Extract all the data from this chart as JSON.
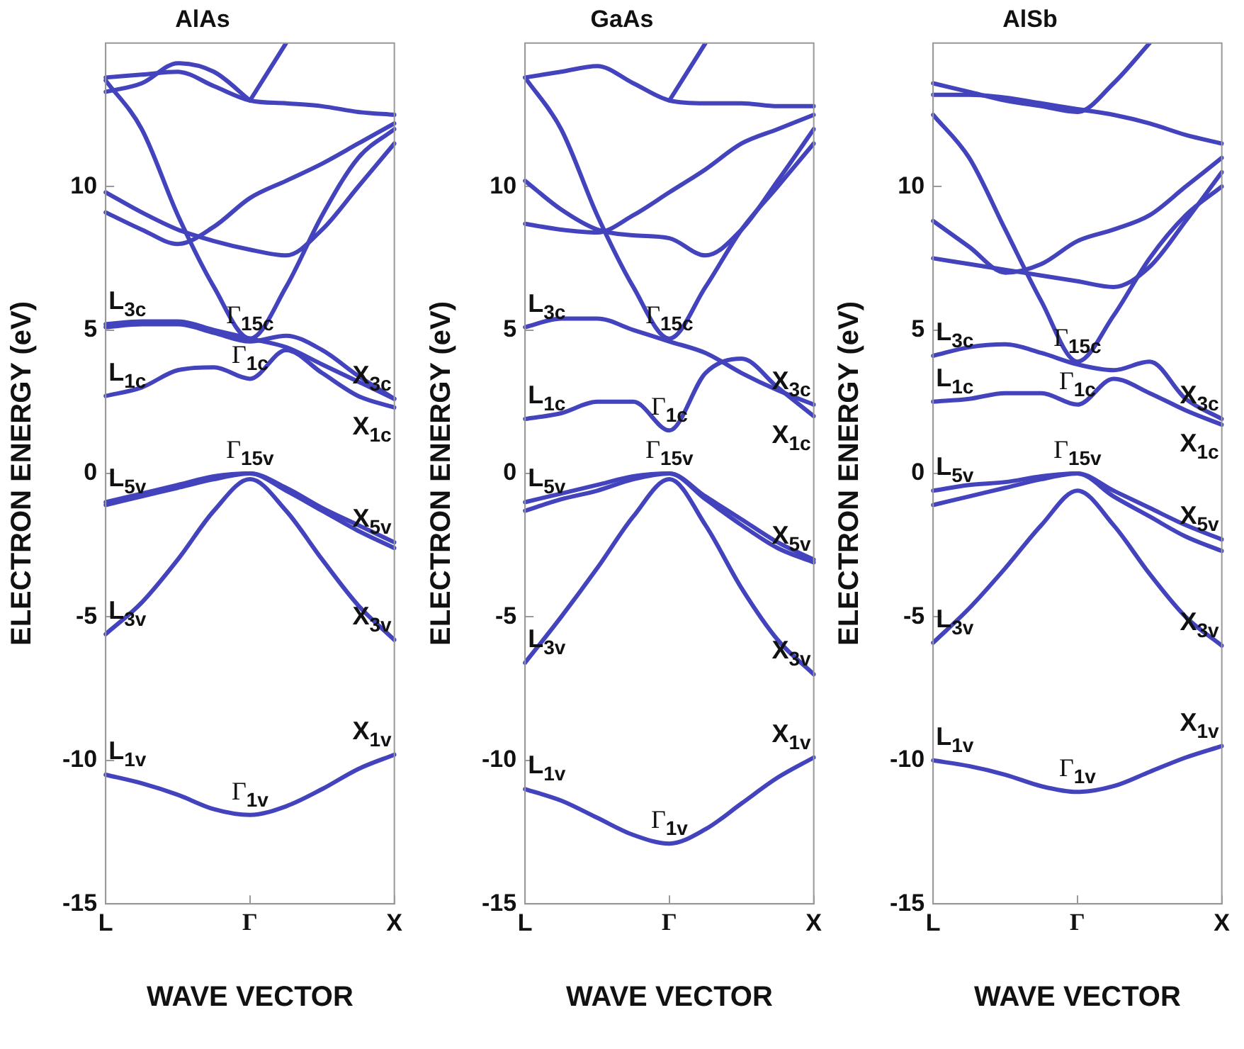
{
  "chart_data": [
    {
      "type": "line",
      "title": "AlAs",
      "xlabel": "WAVE VECTOR",
      "ylabel": "ELECTRON ENERGY (eV)",
      "categories": [
        "L",
        null,
        null,
        null,
        "Γ",
        null,
        null,
        null,
        "X"
      ],
      "ylim": [
        -15,
        15
      ],
      "yticks": [
        -15,
        -10,
        -5,
        0,
        5,
        10
      ],
      "legend": false,
      "grid": false,
      "marker": "none",
      "series": [
        {
          "color": "#4343bd",
          "values": [
            -10.5,
            -10.8,
            -11.2,
            -11.7,
            -11.9,
            -11.6,
            -11,
            -10.3,
            -9.8
          ]
        },
        {
          "color": "#4343bd",
          "values": [
            -5.6,
            -4.5,
            -3,
            -1.3,
            -0.2,
            -1.3,
            -3,
            -4.6,
            -5.8
          ]
        },
        {
          "color": "#4343bd",
          "values": [
            -1.1,
            -0.8,
            -0.5,
            -0.2,
            0,
            -0.6,
            -1.3,
            -2,
            -2.6
          ]
        },
        {
          "color": "#4343bd",
          "values": [
            -1,
            -0.7,
            -0.4,
            -0.1,
            0,
            -0.5,
            -1.2,
            -1.8,
            -2.4
          ]
        },
        {
          "color": "#4343bd",
          "values": [
            2.7,
            3,
            3.6,
            3.7,
            3.3,
            4.3,
            3.5,
            2.7,
            2.3
          ]
        },
        {
          "color": "#4343bd",
          "values": [
            5.2,
            5.3,
            5.3,
            5,
            4.7,
            4.4,
            3.8,
            3.2,
            2.6
          ]
        },
        {
          "color": "#4343bd",
          "values": [
            5.1,
            5.2,
            5.2,
            4.9,
            4.6,
            4.8,
            4.3,
            3.4,
            2.6
          ]
        },
        {
          "color": "#4343bd",
          "values": [
            13.7,
            12,
            9,
            6.5,
            4.7,
            6.5,
            9,
            11,
            12
          ]
        },
        {
          "color": "#4343bd",
          "values": [
            9.1,
            8.5,
            8,
            8.6,
            9.6,
            10.2,
            10.8,
            11.5,
            12.2
          ]
        },
        {
          "color": "#4343bd",
          "values": [
            9.8,
            9.1,
            8.5,
            8.1,
            7.8,
            7.6,
            8.5,
            10,
            11.5
          ]
        },
        {
          "color": "#4343bd",
          "values": [
            13.8,
            13.9,
            14,
            13.5,
            13,
            12.9,
            12.8,
            12.6,
            12.5
          ]
        },
        {
          "color": "#4343bd",
          "values": [
            13.3,
            13.6,
            14.3,
            14,
            13,
            null,
            null,
            null,
            null
          ]
        },
        {
          "color": "#4343bd",
          "values": [
            null,
            null,
            null,
            null,
            13,
            15,
            null,
            null,
            null
          ]
        }
      ],
      "annotations": [
        {
          "text": "L$_{3c}$",
          "x": "L",
          "y": 5.2
        },
        {
          "text": "L$_{1c}$",
          "x": "L",
          "y": 2.7
        },
        {
          "text": "L$_{5v}$",
          "x": "L",
          "y": -1
        },
        {
          "text": "L$_{3v}$",
          "x": "L",
          "y": -5.6
        },
        {
          "text": "L$_{1v}$",
          "x": "L",
          "y": -10.5
        },
        {
          "text": "Γ$_{15c}$",
          "x": "Γ",
          "y": 4.7
        },
        {
          "text": "Γ$_{1c}$",
          "x": "Γ",
          "y": 3.3
        },
        {
          "text": "Γ$_{15v}$",
          "x": "Γ",
          "y": 0
        },
        {
          "text": "Γ$_{1v}$",
          "x": "Γ",
          "y": -11.9
        },
        {
          "text": "X$_{3c}$",
          "x": "X",
          "y": 2.6
        },
        {
          "text": "X$_{1c}$",
          "x": "X",
          "y": 2.3
        },
        {
          "text": "X$_{5v}$",
          "x": "X",
          "y": -2.4
        },
        {
          "text": "X$_{3v}$",
          "x": "X",
          "y": -5.8
        },
        {
          "text": "X$_{1v}$",
          "x": "X",
          "y": -9.8
        }
      ]
    },
    {
      "type": "line",
      "title": "GaAs",
      "xlabel": "WAVE VECTOR",
      "ylabel": "ELECTRON ENERGY (eV)",
      "categories": [
        "L",
        null,
        null,
        null,
        "Γ",
        null,
        null,
        null,
        "X"
      ],
      "ylim": [
        -15,
        15
      ],
      "yticks": [
        -15,
        -10,
        -5,
        0,
        5,
        10
      ],
      "legend": false,
      "grid": false,
      "marker": "none",
      "series": [
        {
          "color": "#4343bd",
          "values": [
            -11,
            -11.4,
            -12,
            -12.6,
            -12.9,
            -12.4,
            -11.5,
            -10.6,
            -9.9
          ]
        },
        {
          "color": "#4343bd",
          "values": [
            -6.6,
            -5,
            -3.3,
            -1.5,
            -0.2,
            -1.8,
            -4,
            -5.8,
            -7
          ]
        },
        {
          "color": "#4343bd",
          "values": [
            -1,
            -0.7,
            -0.4,
            -0.1,
            0,
            -0.8,
            -1.6,
            -2.4,
            -3
          ]
        },
        {
          "color": "#4343bd",
          "values": [
            -1.3,
            -0.9,
            -0.6,
            -0.2,
            0,
            -0.9,
            -1.8,
            -2.6,
            -3.1
          ]
        },
        {
          "color": "#4343bd",
          "values": [
            1.9,
            2.1,
            2.5,
            2.5,
            1.5,
            3.5,
            4,
            3,
            2
          ]
        },
        {
          "color": "#4343bd",
          "values": [
            5.1,
            5.4,
            5.4,
            5,
            4.6,
            4.2,
            3.5,
            2.9,
            2.4
          ]
        },
        {
          "color": "#4343bd",
          "values": [
            13.8,
            12,
            9,
            6.5,
            4.7,
            6.5,
            8.5,
            10,
            11.5
          ]
        },
        {
          "color": "#4343bd",
          "values": [
            8.7,
            8.5,
            8.4,
            9,
            9.8,
            10.6,
            11.5,
            12,
            12.5
          ]
        },
        {
          "color": "#4343bd",
          "values": [
            10.2,
            9.2,
            8.5,
            8.3,
            8.2,
            7.6,
            8.5,
            10.2,
            12
          ]
        },
        {
          "color": "#4343bd",
          "values": [
            13.8,
            14,
            14.2,
            13.6,
            13,
            12.9,
            12.9,
            12.8,
            12.8
          ]
        },
        {
          "color": "#4343bd",
          "values": [
            null,
            null,
            null,
            null,
            13,
            15,
            null,
            null,
            null
          ]
        }
      ],
      "annotations": [
        {
          "text": "L$_{3c}$",
          "x": "L",
          "y": 5.1
        },
        {
          "text": "L$_{1c}$",
          "x": "L",
          "y": 1.9
        },
        {
          "text": "L$_{5v}$",
          "x": "L",
          "y": -1
        },
        {
          "text": "L$_{3v}$",
          "x": "L",
          "y": -6.6
        },
        {
          "text": "L$_{1v}$",
          "x": "L",
          "y": -11
        },
        {
          "text": "Γ$_{15c}$",
          "x": "Γ",
          "y": 4.7
        },
        {
          "text": "Γ$_{1c}$",
          "x": "Γ",
          "y": 1.5
        },
        {
          "text": "Γ$_{15v}$",
          "x": "Γ",
          "y": 0
        },
        {
          "text": "Γ$_{1v}$",
          "x": "Γ",
          "y": -12.9
        },
        {
          "text": "X$_{3c}$",
          "x": "X",
          "y": 2.4
        },
        {
          "text": "X$_{1c}$",
          "x": "X",
          "y": 2
        },
        {
          "text": "X$_{5v}$",
          "x": "X",
          "y": -3
        },
        {
          "text": "X$_{3v}$",
          "x": "X",
          "y": -7
        },
        {
          "text": "X$_{1v}$",
          "x": "X",
          "y": -9.9
        }
      ]
    },
    {
      "type": "line",
      "title": "AlSb",
      "xlabel": "WAVE VECTOR",
      "ylabel": "ELECTRON ENERGY (eV)",
      "categories": [
        "L",
        null,
        null,
        null,
        "Γ",
        null,
        null,
        null,
        "X"
      ],
      "ylim": [
        -15,
        15
      ],
      "yticks": [
        -15,
        -10,
        -5,
        0,
        5,
        10
      ],
      "legend": false,
      "grid": false,
      "marker": "none",
      "series": [
        {
          "color": "#4343bd",
          "values": [
            -10,
            -10.2,
            -10.5,
            -10.9,
            -11.1,
            -10.9,
            -10.4,
            -9.9,
            -9.5
          ]
        },
        {
          "color": "#4343bd",
          "values": [
            -5.9,
            -4.7,
            -3.3,
            -1.8,
            -0.6,
            -1.8,
            -3.5,
            -5,
            -6
          ]
        },
        {
          "color": "#4343bd",
          "values": [
            -0.6,
            -0.4,
            -0.3,
            -0.1,
            0,
            -0.6,
            -1.2,
            -1.8,
            -2.3
          ]
        },
        {
          "color": "#4343bd",
          "values": [
            -1.1,
            -0.8,
            -0.5,
            -0.2,
            0,
            -0.8,
            -1.5,
            -2.2,
            -2.7
          ]
        },
        {
          "color": "#4343bd",
          "values": [
            2.5,
            2.6,
            2.8,
            2.8,
            2.4,
            3.3,
            2.8,
            2.2,
            1.7
          ]
        },
        {
          "color": "#4343bd",
          "values": [
            4.1,
            4.4,
            4.5,
            4.2,
            3.8,
            3.6,
            3.9,
            2.6,
            1.9
          ]
        },
        {
          "color": "#4343bd",
          "values": [
            12.5,
            11,
            8.5,
            6,
            3.9,
            5.5,
            7.5,
            9,
            10
          ]
        },
        {
          "color": "#4343bd",
          "values": [
            8.8,
            7.9,
            7,
            7.3,
            8.1,
            8.5,
            9,
            10,
            11
          ]
        },
        {
          "color": "#4343bd",
          "values": [
            7.5,
            7.3,
            7.1,
            6.9,
            6.7,
            6.5,
            7.2,
            8.8,
            10.5
          ]
        },
        {
          "color": "#4343bd",
          "values": [
            13.2,
            13.2,
            13.1,
            12.9,
            12.7,
            12.5,
            12.2,
            11.8,
            11.5
          ]
        },
        {
          "color": "#4343bd",
          "values": [
            13.6,
            13.3,
            13,
            12.8,
            12.6,
            13.6,
            15,
            null,
            null
          ]
        }
      ],
      "annotations": [
        {
          "text": "L$_{3c}$",
          "x": "L",
          "y": 4.1
        },
        {
          "text": "L$_{1c}$",
          "x": "L",
          "y": 2.5
        },
        {
          "text": "L$_{5v}$",
          "x": "L",
          "y": -0.6
        },
        {
          "text": "L$_{3v}$",
          "x": "L",
          "y": -5.9
        },
        {
          "text": "L$_{1v}$",
          "x": "L",
          "y": -10
        },
        {
          "text": "Γ$_{15c}$",
          "x": "Γ",
          "y": 3.9
        },
        {
          "text": "Γ$_{1c}$",
          "x": "Γ",
          "y": 2.4
        },
        {
          "text": "Γ$_{15v}$",
          "x": "Γ",
          "y": 0
        },
        {
          "text": "Γ$_{1v}$",
          "x": "Γ",
          "y": -11.1
        },
        {
          "text": "X$_{3c}$",
          "x": "X",
          "y": 1.9
        },
        {
          "text": "X$_{1c}$",
          "x": "X",
          "y": 1.7
        },
        {
          "text": "X$_{5v}$",
          "x": "X",
          "y": -2.3
        },
        {
          "text": "X$_{3v}$",
          "x": "X",
          "y": -6
        },
        {
          "text": "X$_{1v}$",
          "x": "X",
          "y": -9.5
        }
      ]
    }
  ]
}
